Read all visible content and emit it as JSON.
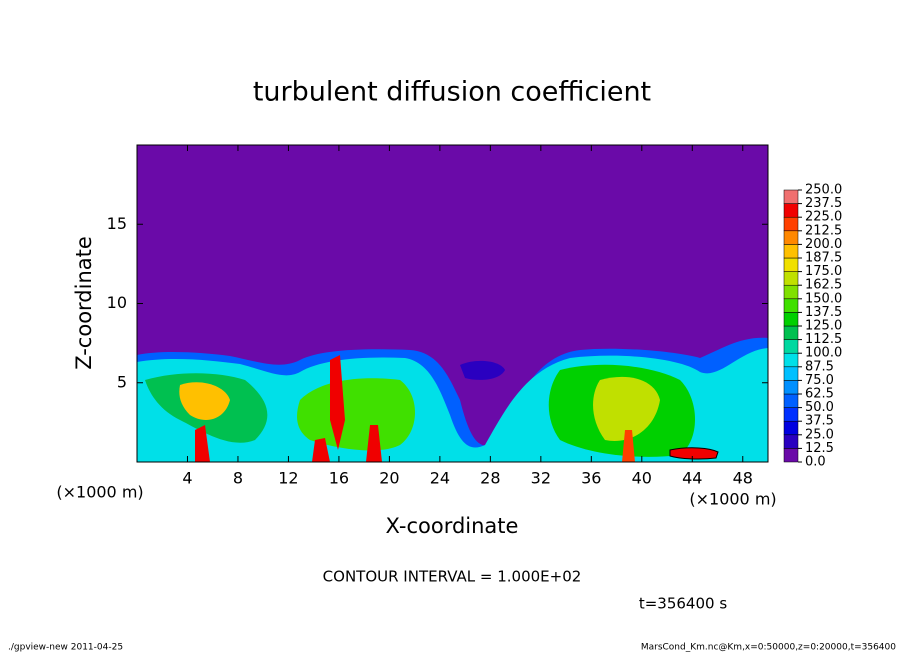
{
  "chart_data": {
    "type": "contour",
    "title": "turbulent diffusion coefficient",
    "x_label": "X-coordinate",
    "y_label": "Z-coordinate",
    "x_unit": "(×1000 m)",
    "y_unit": "(×1000 m)",
    "xlim": [
      0,
      50
    ],
    "ylim": [
      0,
      20
    ],
    "xticks": [
      4,
      8,
      12,
      16,
      20,
      24,
      28,
      32,
      36,
      40,
      44,
      48
    ],
    "yticks": [
      5,
      10,
      15
    ],
    "colorbar": {
      "ticks": [
        {
          "value": 0,
          "label": "0.0"
        },
        {
          "value": 12.5,
          "label": "12.5"
        },
        {
          "value": 25,
          "label": "25.0"
        },
        {
          "value": 37.5,
          "label": "37.5"
        },
        {
          "value": 50,
          "label": "50.0"
        },
        {
          "value": 62.5,
          "label": "62.5"
        },
        {
          "value": 75,
          "label": "75.0"
        },
        {
          "value": 87.5,
          "label": "87.5"
        },
        {
          "value": 100,
          "label": "100.0"
        },
        {
          "value": 112.5,
          "label": "112.5"
        },
        {
          "value": 125,
          "label": "125.0"
        },
        {
          "value": 137.5,
          "label": "137.5"
        },
        {
          "value": 150,
          "label": "150.0"
        },
        {
          "value": 162.5,
          "label": "162.5"
        },
        {
          "value": 175,
          "label": "175.0"
        },
        {
          "value": 187.5,
          "label": "187.5"
        },
        {
          "value": 200,
          "label": "200.0"
        },
        {
          "value": 212.5,
          "label": "212.5"
        },
        {
          "value": 225,
          "label": "225.0"
        },
        {
          "value": 237.5,
          "label": "237.5"
        },
        {
          "value": 250,
          "label": "250.0"
        }
      ],
      "colors": [
        "#6a0aa8",
        "#2a00c0",
        "#0000e0",
        "#0030ff",
        "#0060ff",
        "#0090ff",
        "#00c0ff",
        "#00e0e8",
        "#00d8a0",
        "#00c050",
        "#00d000",
        "#40e000",
        "#80e000",
        "#c0e000",
        "#f0e000",
        "#ffc000",
        "#ff8800",
        "#ff4000",
        "#f00000",
        "#f07070"
      ]
    },
    "contour_interval": "CONTOUR INTERVAL = 1.000E+02",
    "time_label": "t=356400 s",
    "footer_left": "./gpview-new  2011-04-25",
    "footer_right": "MarsCond_Km.nc@Km,x=0:50000,z=0:20000,t=356400"
  }
}
